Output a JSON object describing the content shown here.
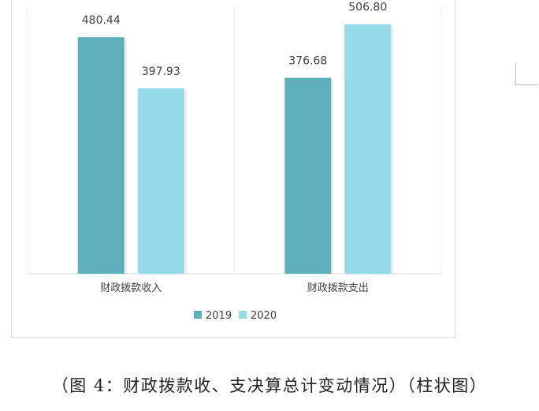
{
  "chart_data": {
    "type": "bar",
    "categories": [
      "财政拨款收入",
      "财政拨款支出"
    ],
    "series": [
      {
        "name": "2019",
        "values": [
          480.44,
          397.93
        ],
        "color": "#5fb0bd"
      },
      {
        "name": "2020",
        "values": [
          376.68,
          506.8
        ],
        "color": "#96d9e8"
      }
    ],
    "value_labels": [
      [
        "480.44",
        "397.93"
      ],
      [
        "376.68",
        "506.80"
      ]
    ],
    "ylim": [
      0,
      540
    ],
    "grid": false,
    "legend_position": "bottom"
  },
  "caption": "（图 4：财政拨款收、支决算总计变动情况）（柱状图）"
}
